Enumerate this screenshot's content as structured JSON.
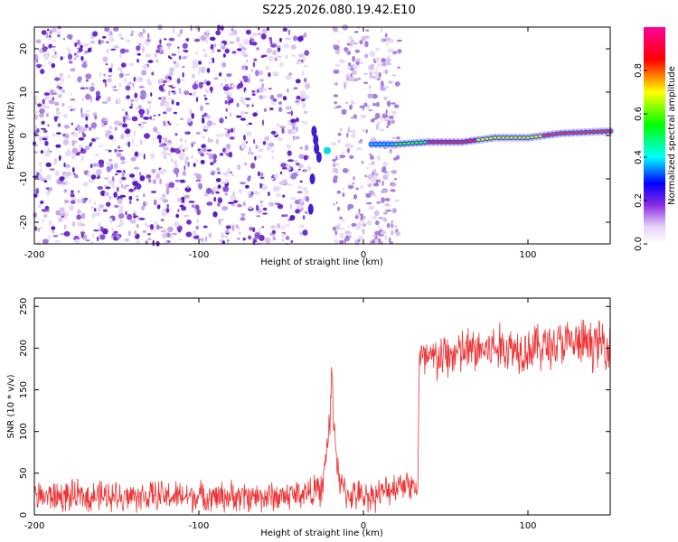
{
  "title": "S225.2026.080.19.42.E10",
  "chart_data": [
    {
      "type": "heatmap",
      "title": "S225.2026.080.19.42.E10",
      "xlabel": "Height of straight line (km)",
      "ylabel": "Frequency (Hz)",
      "xlim": [
        -200,
        150
      ],
      "ylim": [
        -25,
        25
      ],
      "x_ticks": [
        -200,
        -100,
        0,
        100
      ],
      "x_tick_labels": [
        "-200",
        "-100",
        "0",
        "100"
      ],
      "y_ticks": [
        -20,
        -10,
        0,
        10,
        20
      ],
      "y_tick_labels": [
        "-20",
        "-10",
        "0",
        "10",
        "20"
      ],
      "colorbar": {
        "label": "Normalized spectral amplitude",
        "range": [
          0,
          1
        ],
        "ticks": [
          0,
          0.2,
          0.4,
          0.6,
          0.8
        ],
        "tick_labels": [
          "0.0",
          "0.2",
          "0.4",
          "0.6",
          "0.8"
        ]
      },
      "signal_track": {
        "x": [
          5,
          20,
          40,
          60,
          80,
          100,
          120,
          150
        ],
        "freq": [
          -2,
          -2,
          -1.5,
          -1.5,
          -0.5,
          -0.5,
          0.5,
          1
        ]
      }
    },
    {
      "type": "line",
      "xlabel": "Height of straight line (km)",
      "ylabel": "SNR (10 * v/v)",
      "xlim": [
        -200,
        150
      ],
      "ylim": [
        0,
        260
      ],
      "x_ticks": [
        -200,
        -100,
        0,
        100
      ],
      "x_tick_labels": [
        "-200",
        "-100",
        "0",
        "100"
      ],
      "y_ticks": [
        0,
        50,
        100,
        150,
        200,
        250
      ],
      "y_tick_labels": [
        "0",
        "50",
        "100",
        "150",
        "200",
        "250"
      ],
      "series": [
        {
          "name": "SNR",
          "color": "#ee3333",
          "x": [
            -200,
            -150,
            -100,
            -50,
            -25,
            -20,
            -19,
            -18,
            -15,
            -10,
            0,
            10,
            25,
            33,
            34,
            40,
            60,
            80,
            100,
            120,
            150
          ],
          "y": [
            22,
            22,
            22,
            22,
            30,
            120,
            180,
            110,
            40,
            25,
            22,
            25,
            40,
            30,
            185,
            185,
            195,
            200,
            200,
            205,
            205
          ]
        }
      ]
    }
  ]
}
